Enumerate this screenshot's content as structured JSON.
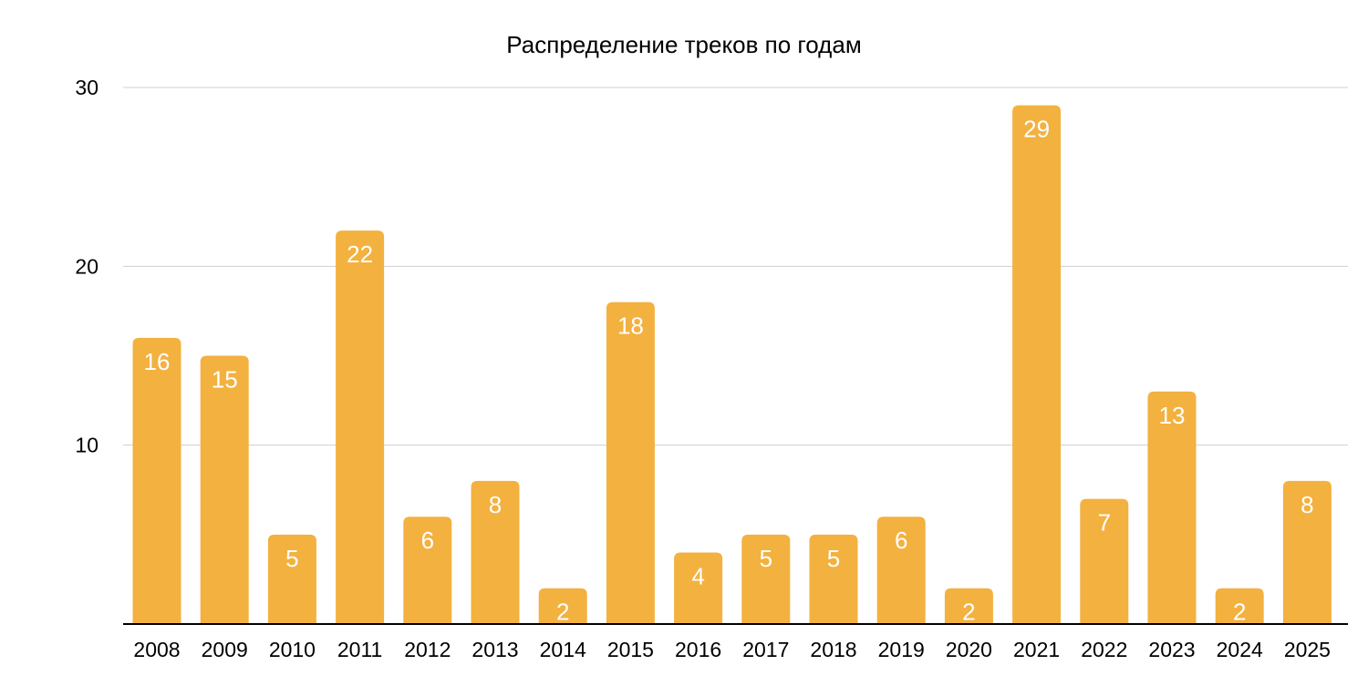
{
  "chart_data": {
    "type": "bar",
    "title": "Распределение треков по годам",
    "xlabel": "",
    "ylabel": "",
    "categories": [
      "2008",
      "2009",
      "2010",
      "2011",
      "2012",
      "2013",
      "2014",
      "2015",
      "2016",
      "2017",
      "2018",
      "2019",
      "2020",
      "2021",
      "2022",
      "2023",
      "2024",
      "2025"
    ],
    "values": [
      16,
      15,
      5,
      22,
      6,
      8,
      2,
      18,
      4,
      5,
      5,
      6,
      2,
      29,
      7,
      13,
      2,
      8
    ],
    "data_labels": [
      "16",
      "15",
      "5",
      "22",
      "6",
      "8",
      "2",
      "18",
      "4",
      "5",
      "5",
      "6",
      "2",
      "29",
      "7",
      "13",
      "2",
      "8"
    ],
    "ylim": [
      0,
      30
    ],
    "y_ticks": [
      10,
      20,
      30
    ],
    "y_tick_labels": [
      "10",
      "20",
      "30"
    ],
    "grid": true,
    "legend": "none",
    "bar_color": "#F3B13F",
    "grid_color": "#d0d0d0",
    "axis_color": "#000000"
  }
}
